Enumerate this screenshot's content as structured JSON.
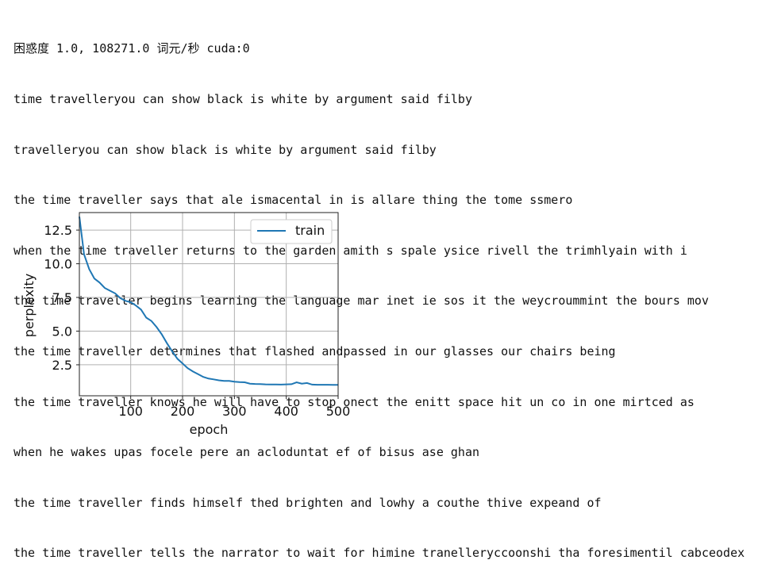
{
  "output": {
    "lines": [
      "困惑度 1.0, 108271.0 词元/秒 cuda:0",
      "time travelleryou can show black is white by argument said filby",
      "travelleryou can show black is white by argument said filby",
      "the time traveller says that ale ismacental in is allare thing the tome ssmero",
      "when the time traveller returns to the garden amith s spale ysice rivell the trimhlyain with i",
      "the time traveller begins learning the language mar inet ie sos it the weycroummint the bours mov",
      "the time traveller determines that flashed andpassed in our glasses our chairs being",
      "the time traveller knows he will have to stop onect the enitt space hit un co in one mirtced as",
      "when he wakes upas focele pere an acloduntat ef of bisus ase ghan",
      "the time traveller finds himself thed brighten and lowhy a couthe thive expeand of",
      "the time traveller tells the narrator to wait for himine tranelleryccoonshi tha foresimentil cabceodex"
    ]
  },
  "chart_data": {
    "type": "line",
    "xlabel": "epoch",
    "ylabel": "perplexity",
    "xlim": [
      1,
      500
    ],
    "ylim": [
      0.2,
      13.8
    ],
    "xticks": [
      100,
      200,
      300,
      400,
      500
    ],
    "xtick_labels": [
      "100",
      "200",
      "300",
      "400",
      "500"
    ],
    "yticks": [
      2.5,
      5.0,
      7.5,
      10.0,
      12.5
    ],
    "ytick_labels": [
      "2.5",
      "5.0",
      "7.5",
      "10.0",
      "12.5"
    ],
    "grid": true,
    "legend_position": "top-right",
    "series": [
      {
        "name": "train",
        "color": "#1f77b4",
        "x": [
          1,
          10,
          20,
          30,
          40,
          50,
          60,
          70,
          80,
          90,
          100,
          110,
          120,
          130,
          140,
          150,
          160,
          170,
          180,
          190,
          200,
          210,
          220,
          230,
          240,
          250,
          260,
          270,
          280,
          290,
          300,
          310,
          320,
          330,
          340,
          350,
          360,
          370,
          380,
          390,
          400,
          410,
          420,
          430,
          440,
          450,
          460,
          470,
          480,
          490,
          500
        ],
        "y": [
          13.5,
          10.7,
          9.6,
          8.9,
          8.6,
          8.2,
          8.0,
          7.8,
          7.45,
          7.25,
          7.15,
          6.9,
          6.6,
          6.0,
          5.75,
          5.3,
          4.75,
          4.1,
          3.5,
          2.95,
          2.6,
          2.25,
          2.0,
          1.8,
          1.6,
          1.48,
          1.42,
          1.35,
          1.3,
          1.3,
          1.25,
          1.22,
          1.2,
          1.1,
          1.08,
          1.07,
          1.05,
          1.04,
          1.04,
          1.03,
          1.05,
          1.06,
          1.2,
          1.1,
          1.15,
          1.03,
          1.02,
          1.02,
          1.02,
          1.01,
          1.01
        ]
      }
    ]
  }
}
